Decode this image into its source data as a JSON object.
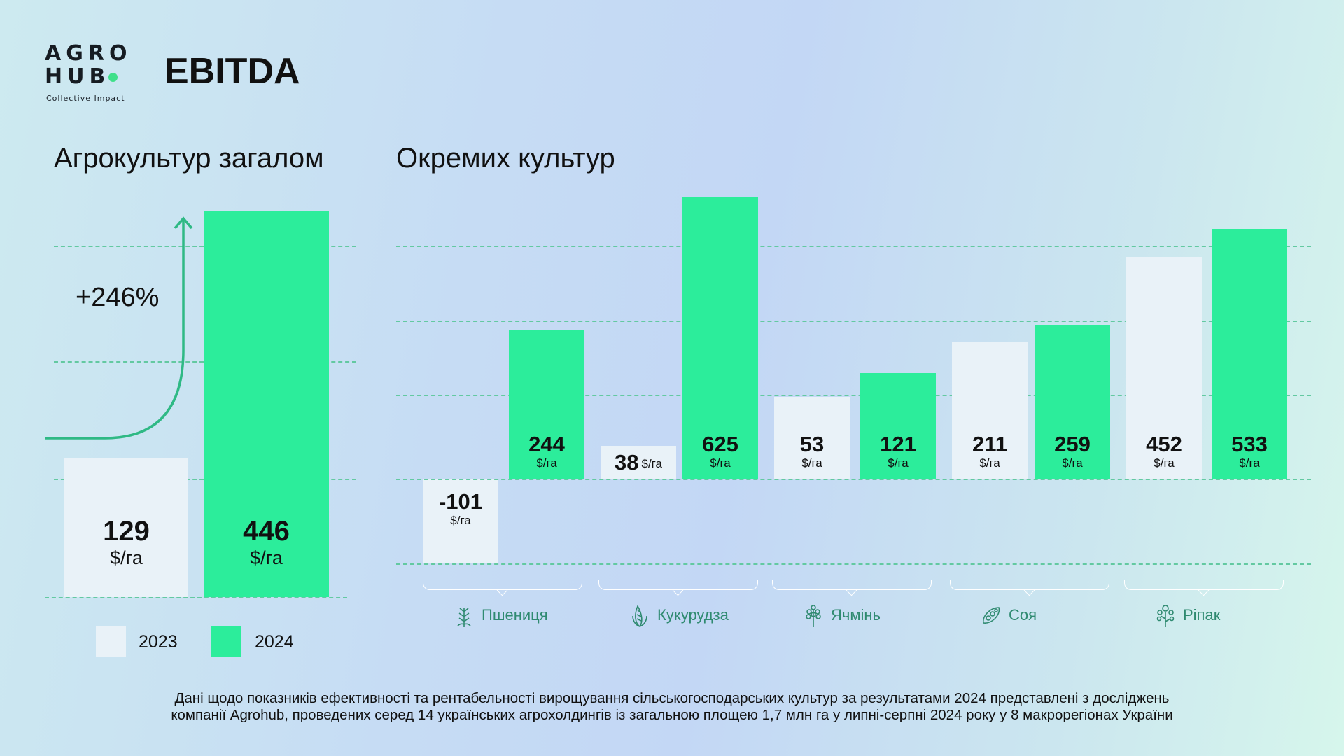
{
  "logo": {
    "line1": "AGRO",
    "line2": "HUB",
    "tagline": "Collective Impact"
  },
  "title": "EBITDA",
  "colors": {
    "y2023": "#e9f2f8",
    "y2024": "#2ced9b",
    "grid": "#63c9a1",
    "crop_label": "#2f8a70"
  },
  "chart_data": [
    {
      "type": "bar",
      "title": "Агрокультур загалом",
      "categories": [
        "2023",
        "2024"
      ],
      "values": [
        129,
        446
      ],
      "unit": "$/га",
      "annotation": "+246%",
      "grid": true,
      "legend": [
        {
          "label": "2023",
          "color": "#e9f2f8"
        },
        {
          "label": "2024",
          "color": "#2ced9b"
        }
      ],
      "legend_placement": "bottom"
    },
    {
      "type": "bar",
      "title": "Окремих культур",
      "unit": "$/га",
      "grid": true,
      "categories": [
        {
          "label": "Пшениця",
          "icon": "wheat-icon"
        },
        {
          "label": "Кукурудза",
          "icon": "corn-icon"
        },
        {
          "label": "Ячмінь",
          "icon": "barley-icon"
        },
        {
          "label": "Соя",
          "icon": "soy-icon"
        },
        {
          "label": "Ріпак",
          "icon": "rapeseed-icon"
        }
      ],
      "series": [
        {
          "name": "2023",
          "values": [
            -101,
            38,
            53,
            211,
            452
          ]
        },
        {
          "name": "2024",
          "values": [
            244,
            625,
            121,
            259,
            533
          ]
        }
      ]
    }
  ],
  "footnote": {
    "line1": "Дані щодо показників ефективності та рентабельності вирощування сільськогосподарських культур за результатами 2024 представлені з досліджень",
    "line2": "компанії Agrohub, проведених серед 14 українських агрохолдингів із загальною площею 1,7 млн га у липні-серпні 2024 року у 8 макрорегіонах України"
  }
}
